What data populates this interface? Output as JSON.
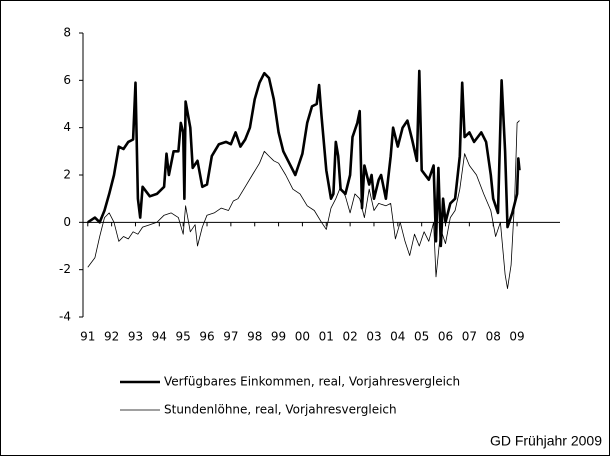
{
  "chart_data": {
    "type": "line",
    "source": "GD Frühjahr 2009",
    "xlim": [
      1990.8,
      2010.8
    ],
    "xticks": [
      {
        "value": 1991,
        "label": "91"
      },
      {
        "value": 1992,
        "label": "92"
      },
      {
        "value": 1993,
        "label": "93"
      },
      {
        "value": 1994,
        "label": "94"
      },
      {
        "value": 1995,
        "label": "95"
      },
      {
        "value": 1996,
        "label": "96"
      },
      {
        "value": 1997,
        "label": "97"
      },
      {
        "value": 1998,
        "label": "98"
      },
      {
        "value": 1999,
        "label": "99"
      },
      {
        "value": 2000,
        "label": "00"
      },
      {
        "value": 2001,
        "label": "01"
      },
      {
        "value": 2002,
        "label": "02"
      },
      {
        "value": 2003,
        "label": "03"
      },
      {
        "value": 2004,
        "label": "04"
      },
      {
        "value": 2005,
        "label": "05"
      },
      {
        "value": 2006,
        "label": "06"
      },
      {
        "value": 2007,
        "label": "07"
      },
      {
        "value": 2008,
        "label": "08"
      },
      {
        "value": 2009,
        "label": "09"
      }
    ],
    "ylim": [
      -4,
      8
    ],
    "yticks": [
      -4,
      -2,
      0,
      2,
      4,
      6,
      8
    ],
    "grid": false,
    "series": [
      {
        "name": "Verfügbares Einkommen, real, Vorjahresvergleich",
        "color": "#000000",
        "width": 2.6,
        "x": [
          1991.0,
          1991.3,
          1991.5,
          1991.7,
          1991.9,
          1992.1,
          1992.3,
          1992.5,
          1992.7,
          1992.9,
          1993.0,
          1993.1,
          1993.2,
          1993.3,
          1993.6,
          1993.9,
          1994.2,
          1994.3,
          1994.4,
          1994.6,
          1994.8,
          1994.9,
          1995.0,
          1995.05,
          1995.1,
          1995.3,
          1995.4,
          1995.6,
          1995.8,
          1996.0,
          1996.2,
          1996.5,
          1996.8,
          1997.0,
          1997.2,
          1997.4,
          1997.6,
          1997.8,
          1998.0,
          1998.2,
          1998.4,
          1998.6,
          1998.8,
          1999.0,
          1999.2,
          1999.4,
          1999.7,
          2000.0,
          2000.2,
          2000.4,
          2000.6,
          2000.7,
          2000.8,
          2001.0,
          2001.2,
          2001.3,
          2001.4,
          2001.5,
          2001.6,
          2001.8,
          2002.0,
          2002.1,
          2002.3,
          2002.4,
          2002.5,
          2002.6,
          2002.8,
          2002.9,
          2003.0,
          2003.2,
          2003.3,
          2003.5,
          2003.7,
          2003.8,
          2004.0,
          2004.2,
          2004.4,
          2004.6,
          2004.8,
          2004.9,
          2005.0,
          2005.3,
          2005.5,
          2005.6,
          2005.7,
          2005.8,
          2005.9,
          2006.0,
          2006.2,
          2006.4,
          2006.6,
          2006.7,
          2006.8,
          2007.0,
          2007.2,
          2007.5,
          2007.7,
          2007.9,
          2008.0,
          2008.2,
          2008.35,
          2008.5,
          2008.6,
          2008.8,
          2009.0,
          2009.05,
          2009.1
        ],
        "values": [
          0.0,
          0.2,
          0.0,
          0.5,
          1.2,
          2.0,
          3.2,
          3.1,
          3.4,
          3.5,
          5.9,
          1.0,
          0.2,
          1.5,
          1.1,
          1.2,
          1.5,
          2.9,
          2.0,
          3.0,
          3.0,
          4.2,
          3.8,
          1.0,
          5.1,
          4.0,
          2.3,
          2.6,
          1.5,
          1.6,
          2.8,
          3.3,
          3.4,
          3.3,
          3.8,
          3.2,
          3.5,
          4.0,
          5.2,
          5.9,
          6.3,
          6.1,
          5.2,
          3.8,
          3.0,
          2.6,
          2.0,
          2.9,
          4.2,
          4.9,
          5.0,
          5.8,
          4.5,
          2.2,
          1.0,
          1.2,
          3.4,
          2.8,
          1.4,
          1.2,
          2.0,
          3.6,
          4.2,
          4.7,
          0.6,
          2.4,
          1.6,
          2.0,
          1.0,
          1.8,
          2.0,
          1.0,
          2.8,
          4.0,
          3.2,
          4.0,
          4.3,
          3.5,
          2.6,
          6.4,
          2.2,
          1.8,
          2.4,
          -0.8,
          2.3,
          -1.0,
          1.0,
          0.0,
          0.8,
          1.0,
          2.8,
          5.9,
          3.6,
          3.8,
          3.4,
          3.8,
          3.4,
          2.0,
          1.0,
          0.4,
          6.0,
          3.0,
          -0.2,
          0.4,
          1.2,
          2.7,
          2.2
        ]
      },
      {
        "name": "Stundenlöhne, real, Vorjahresvergleich",
        "color": "#000000",
        "width": 0.8,
        "x": [
          1991.0,
          1991.3,
          1991.5,
          1991.7,
          1991.9,
          1992.1,
          1992.3,
          1992.5,
          1992.7,
          1992.9,
          1993.1,
          1993.3,
          1993.6,
          1993.9,
          1994.2,
          1994.5,
          1994.8,
          1995.0,
          1995.1,
          1995.3,
          1995.5,
          1995.6,
          1995.8,
          1996.0,
          1996.3,
          1996.6,
          1996.9,
          1997.1,
          1997.3,
          1997.6,
          1997.9,
          1998.2,
          1998.4,
          1998.6,
          1998.8,
          1999.0,
          1999.3,
          1999.6,
          1999.9,
          2000.2,
          2000.5,
          2000.8,
          2001.0,
          2001.2,
          2001.4,
          2001.6,
          2001.8,
          2002.0,
          2002.2,
          2002.4,
          2002.6,
          2002.8,
          2003.0,
          2003.2,
          2003.5,
          2003.7,
          2003.9,
          2004.1,
          2004.3,
          2004.5,
          2004.7,
          2004.9,
          2005.1,
          2005.3,
          2005.5,
          2005.6,
          2005.8,
          2006.0,
          2006.2,
          2006.4,
          2006.6,
          2006.8,
          2007.0,
          2007.3,
          2007.6,
          2007.9,
          2008.1,
          2008.3,
          2008.5,
          2008.6,
          2008.75,
          2008.9,
          2009.0,
          2009.1
        ],
        "values": [
          -1.9,
          -1.5,
          -0.6,
          0.2,
          0.4,
          0.0,
          -0.8,
          -0.6,
          -0.7,
          -0.4,
          -0.5,
          -0.2,
          -0.1,
          0.0,
          0.3,
          0.4,
          0.2,
          -0.5,
          0.7,
          -0.4,
          -0.1,
          -1.0,
          -0.2,
          0.3,
          0.4,
          0.6,
          0.5,
          0.9,
          1.0,
          1.5,
          2.0,
          2.5,
          3.0,
          2.8,
          2.6,
          2.5,
          2.0,
          1.4,
          1.2,
          0.7,
          0.5,
          0.0,
          -0.3,
          0.6,
          1.0,
          1.5,
          1.1,
          0.4,
          1.2,
          1.0,
          0.2,
          1.4,
          0.5,
          0.8,
          0.7,
          0.8,
          -0.7,
          0.0,
          -0.8,
          -1.4,
          -0.5,
          -1.0,
          -0.4,
          -0.8,
          0.0,
          -2.3,
          -0.3,
          -0.9,
          0.2,
          0.5,
          1.4,
          2.9,
          2.4,
          2.0,
          1.2,
          0.5,
          -0.6,
          0.0,
          -2.2,
          -2.8,
          -1.8,
          1.0,
          4.2,
          4.3
        ]
      }
    ]
  }
}
